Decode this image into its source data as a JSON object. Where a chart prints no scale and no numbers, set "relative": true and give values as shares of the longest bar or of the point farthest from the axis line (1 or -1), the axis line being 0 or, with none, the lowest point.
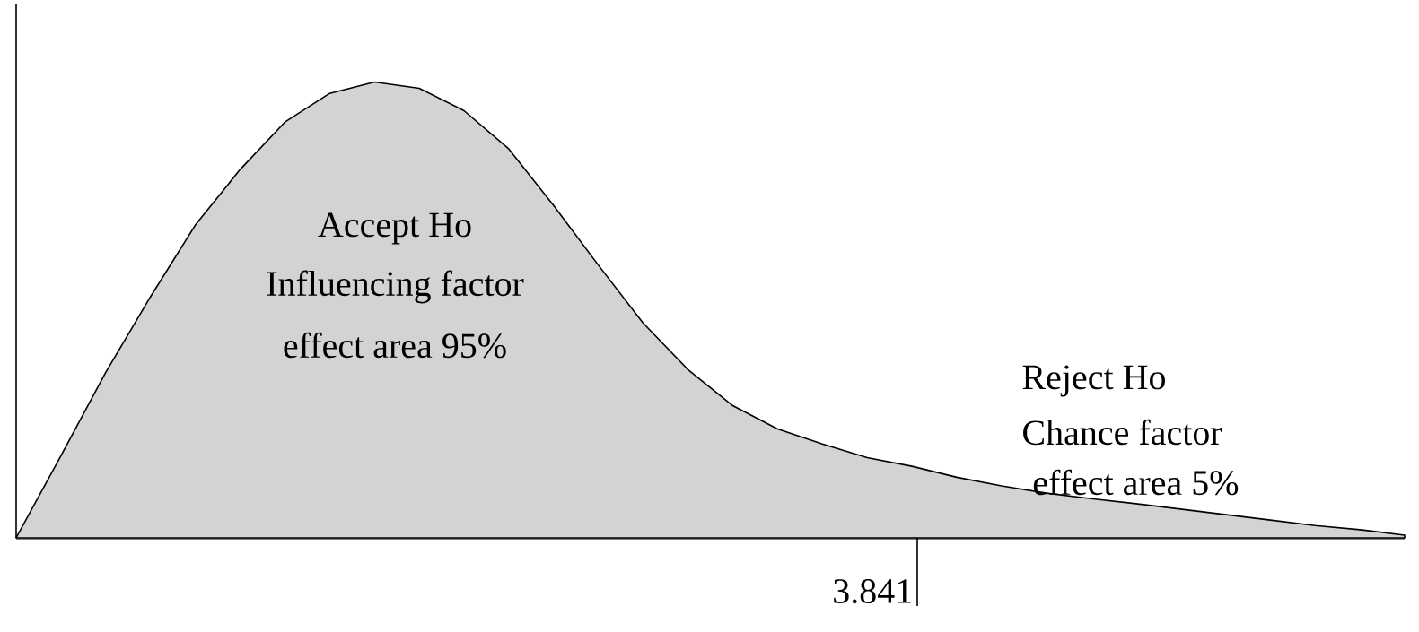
{
  "chart_data": {
    "type": "area",
    "relative": true,
    "categories": [
      null,
      null,
      null,
      null,
      null,
      null,
      null,
      null,
      null,
      null,
      null,
      null,
      null,
      null,
      null,
      null,
      null,
      null,
      null,
      null,
      null,
      null,
      null,
      null,
      null,
      null,
      null,
      null,
      null,
      null,
      null,
      null
    ],
    "values": [
      0,
      0.18,
      0.363,
      0.529,
      0.686,
      0.808,
      0.912,
      0.975,
      1,
      0.986,
      0.937,
      0.853,
      0.729,
      0.598,
      0.471,
      0.369,
      0.29,
      0.239,
      0.206,
      0.176,
      0.157,
      0.133,
      0.114,
      0.098,
      0.086,
      0.075,
      0.063,
      0.051,
      0.039,
      0.027,
      0.018,
      0.006
    ],
    "color": "#d3d3d3",
    "annotations": [
      "Accept Ho",
      "Influencing factor",
      "effect area  95%",
      "Reject Ho",
      "Chance factor",
      "effect area 5%",
      "3.841"
    ]
  }
}
